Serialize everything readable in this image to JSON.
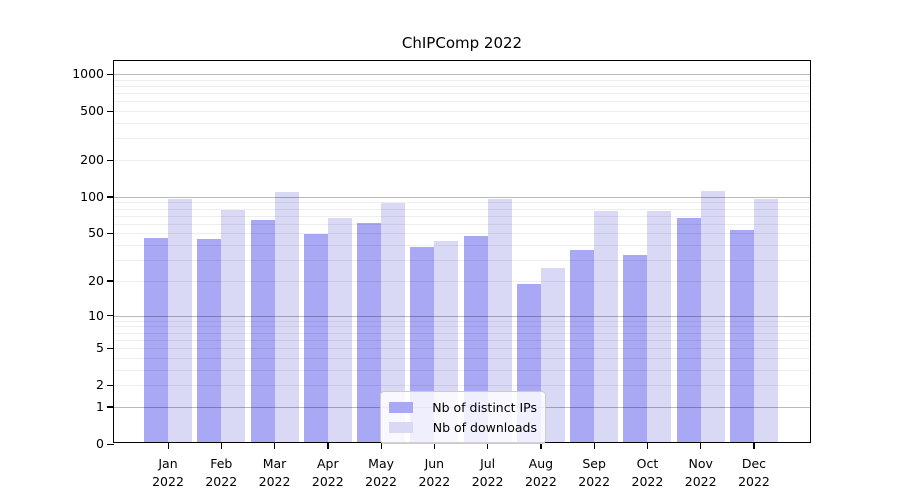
{
  "title": "ChIPComp 2022",
  "colors": {
    "ips_bar": "#a8a8f4",
    "downloads_bar": "#d9d9f6",
    "grid_major": "#b9b9b9",
    "grid_minor": "#ececec",
    "axis": "#000000",
    "legend_border": "#cccccc"
  },
  "legend": {
    "items": [
      {
        "label": "Nb of distinct IPs",
        "series": "ips"
      },
      {
        "label": "Nb of downloads",
        "series": "downloads"
      }
    ]
  },
  "y_axis": {
    "tick_labels": [
      "0",
      "1",
      "2",
      "5",
      "10",
      "20",
      "50",
      "100",
      "200",
      "500",
      "1000"
    ]
  },
  "x_axis": {
    "year": "2022",
    "months": [
      "Jan",
      "Feb",
      "Mar",
      "Apr",
      "May",
      "Jun",
      "Jul",
      "Aug",
      "Sep",
      "Oct",
      "Nov",
      "Dec"
    ]
  },
  "chart_data": {
    "type": "bar",
    "title": "ChIPComp 2022",
    "categories": [
      "Jan 2022",
      "Feb 2022",
      "Mar 2022",
      "Apr 2022",
      "May 2022",
      "Jun 2022",
      "Jul 2022",
      "Aug 2022",
      "Sep 2022",
      "Oct 2022",
      "Nov 2022",
      "Dec 2022"
    ],
    "series": [
      {
        "name": "Nb of distinct IPs",
        "color": "#a8a8f4",
        "values": [
          44,
          43,
          62,
          48,
          59,
          37,
          46,
          18,
          35,
          32,
          64,
          51
        ]
      },
      {
        "name": "Nb of downloads",
        "color": "#d9d9f6",
        "values": [
          93,
          75,
          105,
          64,
          85,
          42,
          93,
          25,
          74,
          74,
          107,
          93
        ]
      }
    ],
    "yscale": "log10(value+1)",
    "yticks": [
      0,
      1,
      2,
      5,
      10,
      20,
      50,
      100,
      200,
      500,
      1000
    ],
    "major_grid_at": [
      1,
      10,
      100,
      1000
    ],
    "ylim": [
      0,
      1275
    ],
    "grid": "horizontal",
    "legend_position": "inside-bottom-center",
    "xlabel": "",
    "ylabel": ""
  }
}
